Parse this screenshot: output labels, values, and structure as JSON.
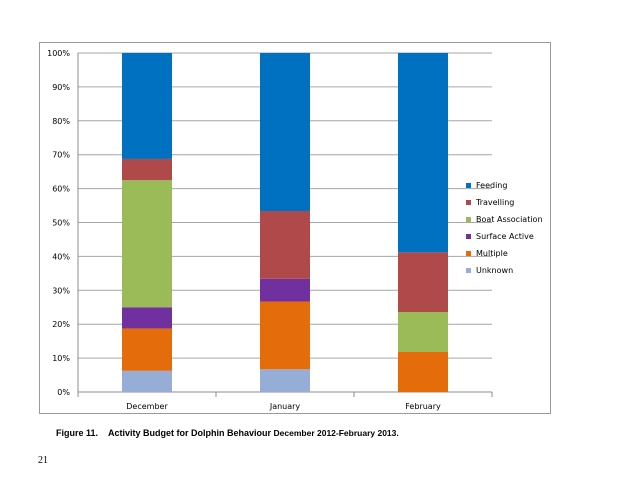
{
  "chart_data": {
    "type": "bar",
    "stacked": true,
    "percent_stacked": true,
    "title": "",
    "xlabel": "",
    "ylabel": "",
    "ylim": [
      0,
      100
    ],
    "y_ticks": [
      "0%",
      "10%",
      "20%",
      "30%",
      "40%",
      "50%",
      "60%",
      "70%",
      "80%",
      "90%",
      "100%"
    ],
    "grid": true,
    "legend_position": "right",
    "categories": [
      "December",
      "January",
      "February"
    ],
    "series": [
      {
        "name": "Unknown",
        "color": "#95ADD7",
        "values": [
          6.25,
          6.7,
          0
        ]
      },
      {
        "name": "Multiple",
        "color": "#E46C0A",
        "values": [
          12.5,
          20,
          11.8
        ]
      },
      {
        "name": "Surface Active",
        "color": "#7030A0",
        "values": [
          6.25,
          6.7,
          0
        ]
      },
      {
        "name": "Boat Association",
        "color": "#9BBB59",
        "values": [
          37.5,
          0,
          11.8
        ]
      },
      {
        "name": "Travelling",
        "color": "#B04A4A",
        "values": [
          6.25,
          20,
          17.6
        ]
      },
      {
        "name": "Feeding",
        "color": "#0070C0",
        "values": [
          31.25,
          46.6,
          58.8
        ]
      }
    ],
    "legend_order": [
      "Feeding",
      "Travelling",
      "Boat Association",
      "Surface Active",
      "Multiple",
      "Unknown"
    ]
  },
  "caption": {
    "label": "Figure 11.",
    "text": "Activity Budget for Dolphin Behaviour",
    "tail": "December 2012-February 2013."
  },
  "page_number": "21"
}
